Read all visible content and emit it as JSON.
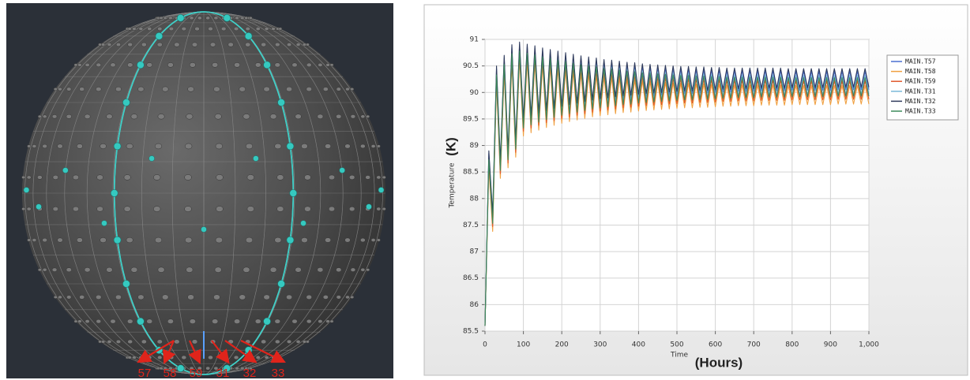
{
  "sphere": {
    "labels": [
      "57",
      "58",
      "59",
      "31",
      "32",
      "33"
    ]
  },
  "chart_data": {
    "type": "line",
    "y_label": "Temperature",
    "x_label": "Time",
    "y_unit_annotation": "(K)",
    "x_unit_annotation": "(Hours)",
    "xlim": [
      0,
      1000
    ],
    "ylim": [
      85.5,
      91
    ],
    "xticks": [
      0,
      100,
      200,
      300,
      400,
      500,
      600,
      700,
      800,
      900,
      {
        "value": 1000,
        "label": "1,000"
      }
    ],
    "yticks": [
      85.5,
      86,
      86.5,
      87,
      87.5,
      88,
      88.5,
      89,
      89.5,
      90,
      90.5,
      91
    ],
    "grid": true,
    "legend": "right",
    "x": [
      0,
      10,
      20,
      30,
      40,
      50,
      60,
      70,
      80,
      90,
      100,
      110,
      120,
      130,
      140,
      150,
      160,
      170,
      180,
      190,
      200,
      210,
      220,
      230,
      240,
      250,
      260,
      270,
      280,
      290,
      300,
      310,
      320,
      330,
      340,
      350,
      360,
      370,
      380,
      390,
      400,
      410,
      420,
      430,
      440,
      450,
      460,
      470,
      480,
      490,
      500,
      510,
      520,
      530,
      540,
      550,
      560,
      570,
      580,
      590,
      600,
      610,
      620,
      630,
      640,
      650,
      660,
      670,
      680,
      690,
      700,
      710,
      720,
      730,
      740,
      750,
      760,
      770,
      780,
      790,
      800,
      810,
      820,
      830,
      840,
      850,
      860,
      870,
      880,
      890,
      900,
      910,
      920,
      930,
      940,
      950,
      960,
      970,
      980,
      990,
      1000
    ],
    "series": [
      {
        "name": "MAIN.T57",
        "color": "#4a6fd0",
        "values": [
          85.6,
          88.85,
          87.65,
          90.45,
          88.65,
          90.65,
          88.85,
          90.85,
          89.05,
          90.9,
          89.45,
          90.86,
          89.51,
          90.83,
          89.56,
          90.79,
          89.61,
          90.76,
          89.65,
          90.73,
          89.69,
          90.7,
          89.72,
          90.67,
          89.75,
          90.64,
          89.78,
          90.62,
          89.81,
          90.6,
          89.83,
          90.57,
          89.85,
          90.56,
          89.87,
          90.54,
          89.89,
          90.52,
          89.9,
          90.51,
          89.92,
          90.49,
          89.93,
          90.48,
          89.94,
          90.47,
          89.95,
          90.46,
          89.96,
          90.45,
          89.97,
          90.44,
          89.98,
          90.44,
          89.98,
          90.43,
          89.99,
          90.43,
          89.99,
          90.42,
          90,
          90.42,
          90.01,
          90.41,
          90.01,
          90.41,
          90.02,
          90.41,
          90.02,
          90.41,
          90.02,
          90.41,
          90.03,
          90.41,
          90.03,
          90.41,
          90.03,
          90.41,
          90.03,
          90.4,
          90.04,
          90.4,
          90.04,
          90.4,
          90.04,
          90.4,
          90.04,
          90.4,
          90.04,
          90.4,
          90.04,
          90.4,
          90.05,
          90.4,
          90.05,
          90.4,
          90.05,
          90.4,
          90.05,
          90.4,
          90.05
        ]
      },
      {
        "name": "MAIN.T58",
        "color": "#f0a040",
        "values": [
          85.6,
          88.58,
          87.38,
          90.18,
          88.38,
          90.38,
          88.58,
          90.58,
          88.78,
          90.63,
          89.18,
          90.59,
          89.24,
          90.56,
          89.29,
          90.52,
          89.34,
          90.49,
          89.38,
          90.46,
          89.42,
          90.43,
          89.45,
          90.4,
          89.48,
          90.37,
          89.51,
          90.35,
          89.54,
          90.33,
          89.56,
          90.3,
          89.58,
          90.29,
          89.6,
          90.27,
          89.62,
          90.25,
          89.63,
          90.24,
          89.65,
          90.22,
          89.66,
          90.21,
          89.67,
          90.2,
          89.68,
          90.19,
          89.69,
          90.18,
          89.7,
          90.17,
          89.71,
          90.17,
          89.71,
          90.16,
          89.72,
          90.16,
          89.72,
          90.15,
          89.73,
          90.15,
          89.74,
          90.14,
          89.74,
          90.14,
          89.75,
          90.14,
          89.75,
          90.14,
          89.75,
          90.14,
          89.76,
          90.14,
          89.76,
          90.14,
          89.76,
          90.14,
          89.76,
          90.13,
          89.77,
          90.13,
          89.77,
          90.13,
          89.77,
          90.13,
          89.77,
          90.13,
          89.77,
          90.13,
          89.77,
          90.13,
          89.78,
          90.13,
          89.78,
          90.13,
          89.78,
          90.13,
          89.78,
          90.13,
          89.78
        ]
      },
      {
        "name": "MAIN.T59",
        "color": "#e0582c",
        "values": [
          85.6,
          88.67,
          87.47,
          90.27,
          88.47,
          90.47,
          88.67,
          90.67,
          88.87,
          90.72,
          89.27,
          90.68,
          89.33,
          90.65,
          89.38,
          90.61,
          89.43,
          90.58,
          89.47,
          90.55,
          89.51,
          90.52,
          89.54,
          90.49,
          89.57,
          90.46,
          89.6,
          90.44,
          89.63,
          90.42,
          89.65,
          90.39,
          89.67,
          90.38,
          89.69,
          90.36,
          89.71,
          90.34,
          89.72,
          90.33,
          89.74,
          90.31,
          89.75,
          90.3,
          89.76,
          90.29,
          89.77,
          90.28,
          89.78,
          90.27,
          89.79,
          90.26,
          89.8,
          90.26,
          89.8,
          90.25,
          89.81,
          90.25,
          89.81,
          90.24,
          89.82,
          90.24,
          89.83,
          90.23,
          89.83,
          90.23,
          89.84,
          90.23,
          89.84,
          90.23,
          89.84,
          90.23,
          89.85,
          90.23,
          89.85,
          90.23,
          89.85,
          90.23,
          89.85,
          90.22,
          89.86,
          90.22,
          89.86,
          90.22,
          89.86,
          90.22,
          89.86,
          90.22,
          89.86,
          90.22,
          89.86,
          90.22,
          89.87,
          90.22,
          89.87,
          90.22,
          89.87,
          90.22,
          89.87,
          90.22,
          89.87
        ]
      },
      {
        "name": "MAIN.T31",
        "color": "#7ab8d8",
        "values": [
          85.6,
          88.77,
          87.57,
          90.37,
          88.57,
          90.57,
          88.77,
          90.77,
          88.97,
          90.82,
          89.37,
          90.78,
          89.43,
          90.75,
          89.48,
          90.71,
          89.53,
          90.68,
          89.57,
          90.65,
          89.61,
          90.62,
          89.64,
          90.59,
          89.67,
          90.56,
          89.7,
          90.54,
          89.73,
          90.52,
          89.75,
          90.49,
          89.77,
          90.48,
          89.79,
          90.46,
          89.81,
          90.44,
          89.82,
          90.43,
          89.84,
          90.41,
          89.85,
          90.4,
          89.86,
          90.39,
          89.87,
          90.38,
          89.88,
          90.37,
          89.89,
          90.36,
          89.9,
          90.36,
          89.9,
          90.35,
          89.91,
          90.35,
          89.91,
          90.34,
          89.92,
          90.34,
          89.93,
          90.33,
          89.93,
          90.33,
          89.94,
          90.33,
          89.94,
          90.33,
          89.94,
          90.33,
          89.95,
          90.33,
          89.95,
          90.33,
          89.95,
          90.33,
          89.95,
          90.32,
          89.96,
          90.32,
          89.96,
          90.32,
          89.96,
          90.32,
          89.96,
          90.32,
          89.96,
          90.32,
          89.96,
          90.32,
          89.97,
          90.32,
          89.97,
          90.32,
          89.97,
          90.32,
          89.97,
          90.32,
          89.97
        ]
      },
      {
        "name": "MAIN.T32",
        "color": "#2f3b5c",
        "values": [
          85.6,
          88.9,
          87.7,
          90.5,
          88.7,
          90.7,
          88.9,
          90.9,
          89.1,
          90.95,
          89.5,
          90.91,
          89.56,
          90.88,
          89.61,
          90.84,
          89.66,
          90.81,
          89.7,
          90.78,
          89.74,
          90.75,
          89.77,
          90.72,
          89.8,
          90.69,
          89.83,
          90.67,
          89.86,
          90.65,
          89.88,
          90.62,
          89.9,
          90.61,
          89.92,
          90.59,
          89.94,
          90.57,
          89.95,
          90.56,
          89.97,
          90.54,
          89.98,
          90.53,
          89.99,
          90.52,
          90,
          90.51,
          90.01,
          90.5,
          90.02,
          90.49,
          90.03,
          90.49,
          90.03,
          90.48,
          90.04,
          90.48,
          90.04,
          90.47,
          90.05,
          90.47,
          90.06,
          90.46,
          90.06,
          90.46,
          90.07,
          90.46,
          90.07,
          90.46,
          90.07,
          90.46,
          90.08,
          90.46,
          90.08,
          90.46,
          90.08,
          90.46,
          90.08,
          90.45,
          90.09,
          90.45,
          90.09,
          90.45,
          90.09,
          90.45,
          90.09,
          90.45,
          90.09,
          90.45,
          90.09,
          90.45,
          90.1,
          90.45,
          90.1,
          90.45,
          90.1,
          90.45,
          90.1,
          90.45,
          90.1
        ]
      },
      {
        "name": "MAIN.T33",
        "color": "#3c8a5a",
        "values": [
          85.6,
          88.73,
          87.53,
          90.33,
          88.53,
          90.53,
          88.73,
          90.73,
          88.93,
          90.78,
          89.33,
          90.74,
          89.39,
          90.71,
          89.44,
          90.67,
          89.49,
          90.64,
          89.53,
          90.61,
          89.57,
          90.58,
          89.6,
          90.55,
          89.63,
          90.52,
          89.66,
          90.5,
          89.69,
          90.48,
          89.71,
          90.45,
          89.73,
          90.44,
          89.75,
          90.42,
          89.77,
          90.4,
          89.78,
          90.39,
          89.8,
          90.37,
          89.81,
          90.36,
          89.82,
          90.35,
          89.83,
          90.34,
          89.84,
          90.33,
          89.85,
          90.32,
          89.86,
          90.32,
          89.86,
          90.31,
          89.87,
          90.31,
          89.87,
          90.3,
          89.88,
          90.3,
          89.89,
          90.29,
          89.89,
          90.29,
          89.9,
          90.29,
          89.9,
          90.29,
          89.9,
          90.29,
          89.91,
          90.29,
          89.91,
          90.29,
          89.91,
          90.29,
          89.91,
          90.28,
          89.92,
          90.28,
          89.92,
          90.28,
          89.92,
          90.28,
          89.92,
          90.28,
          89.92,
          90.28,
          89.92,
          90.28,
          89.93,
          90.28,
          89.93,
          90.28,
          89.93,
          90.28,
          89.93,
          90.28,
          89.93
        ]
      }
    ]
  }
}
